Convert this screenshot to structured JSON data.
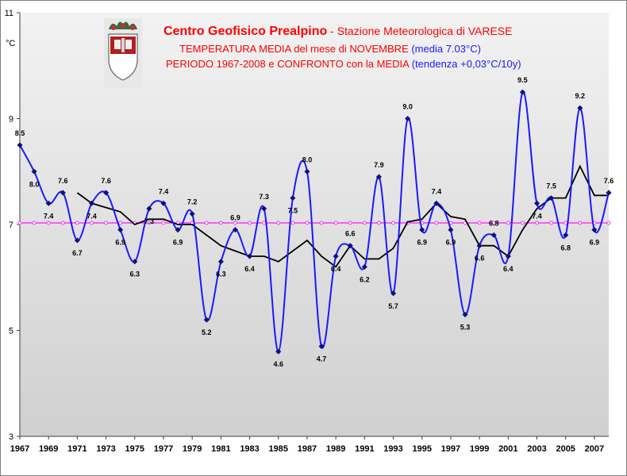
{
  "titles": {
    "line1_main": "Centro Geofisico Prealpino",
    "line1_rest": " - Stazione Meteorologica di VARESE",
    "line2_main": "TEMPERATURA MEDIA del mese di NOVEMBRE ",
    "line2_rest": "(media 7.03°C)",
    "line3_main": "PERIODO 1967-2008 e CONFRONTO con la MEDIA ",
    "line3_rest": "(tendenza +0,03°C/10y)"
  },
  "colors": {
    "series": "#1a1aff",
    "moving_average": "#000000",
    "mean_line": "#ff33ff",
    "background_top": "#f2f2f2",
    "background_bottom": "#d0d0d0"
  },
  "chart_data": {
    "type": "line",
    "ylabel": "°C",
    "ylim": [
      3,
      11
    ],
    "yticks": [
      3,
      5,
      7,
      9,
      11
    ],
    "xlim": [
      1967,
      2008
    ],
    "xticks": [
      1967,
      1969,
      1971,
      1973,
      1975,
      1977,
      1979,
      1981,
      1983,
      1985,
      1987,
      1989,
      1991,
      1993,
      1995,
      1997,
      1999,
      2001,
      2003,
      2005,
      2007
    ],
    "grid": false,
    "mean": 7.03,
    "series": [
      {
        "x": [
          1967,
          1968,
          1969,
          1970,
          1971,
          1972,
          1973,
          1974,
          1975,
          1976,
          1977,
          1978,
          1979,
          1980,
          1981,
          1982,
          1983,
          1984,
          1985,
          1986,
          1987,
          1988,
          1989,
          1990,
          1991,
          1992,
          1993,
          1994,
          1995,
          1996,
          1997,
          1998,
          1999,
          2000,
          2001,
          2002,
          2003,
          2004,
          2005,
          2006,
          2007,
          2008
        ],
        "values": [
          8.5,
          8.0,
          7.4,
          7.6,
          6.7,
          7.4,
          7.6,
          6.9,
          6.3,
          7.3,
          7.4,
          6.9,
          7.2,
          5.2,
          6.3,
          6.9,
          6.4,
          7.3,
          4.6,
          7.5,
          8.0,
          4.7,
          6.4,
          6.6,
          6.2,
          7.9,
          5.7,
          9.0,
          6.9,
          7.4,
          6.9,
          5.3,
          6.6,
          6.8,
          6.4,
          9.5,
          7.4,
          7.5,
          6.8,
          9.2,
          6.9,
          7.6
        ],
        "labels": [
          "8.5",
          "8.0",
          "7.4",
          "7.6",
          "6.7",
          "7.4",
          "7.6",
          "6.9",
          "6.3",
          "7.3",
          "7.4",
          "6.9",
          "7.2",
          "5.2",
          "6.3",
          "6.9",
          "6.4",
          "7.3",
          "4.6",
          "7.5",
          "8.0",
          "4.7",
          "6.4",
          "6.6",
          "6.2",
          "7.9",
          "5.7",
          "9.0",
          "6.9",
          "7.4",
          "6.9",
          "5.3",
          "6.6",
          "6.8",
          "6.4",
          "9.5",
          "7.4",
          "7.5",
          "6.8",
          "9.2",
          "6.9",
          "7.6"
        ]
      },
      {
        "x": [
          1971,
          1972,
          1973,
          1974,
          1975,
          1976,
          1977,
          1978,
          1979,
          1980,
          1981,
          1982,
          1983,
          1984,
          1985,
          1986,
          1987,
          1988,
          1989,
          1990,
          1991,
          1992,
          1993,
          1994,
          1995,
          1996,
          1997,
          1998,
          1999,
          2000,
          2001,
          2002,
          2003,
          2004,
          2005,
          2006,
          2007,
          2008
        ],
        "values": [
          7.6,
          7.4,
          7.32,
          7.24,
          7.0,
          7.1,
          7.1,
          7.0,
          7.0,
          6.8,
          6.6,
          6.5,
          6.4,
          6.4,
          6.3,
          6.5,
          6.7,
          6.4,
          6.2,
          6.6,
          6.35,
          6.35,
          6.55,
          7.05,
          7.1,
          7.4,
          7.15,
          7.1,
          6.6,
          6.6,
          6.4,
          6.9,
          7.3,
          7.5,
          7.5,
          8.1,
          7.55,
          7.55
        ]
      }
    ]
  }
}
